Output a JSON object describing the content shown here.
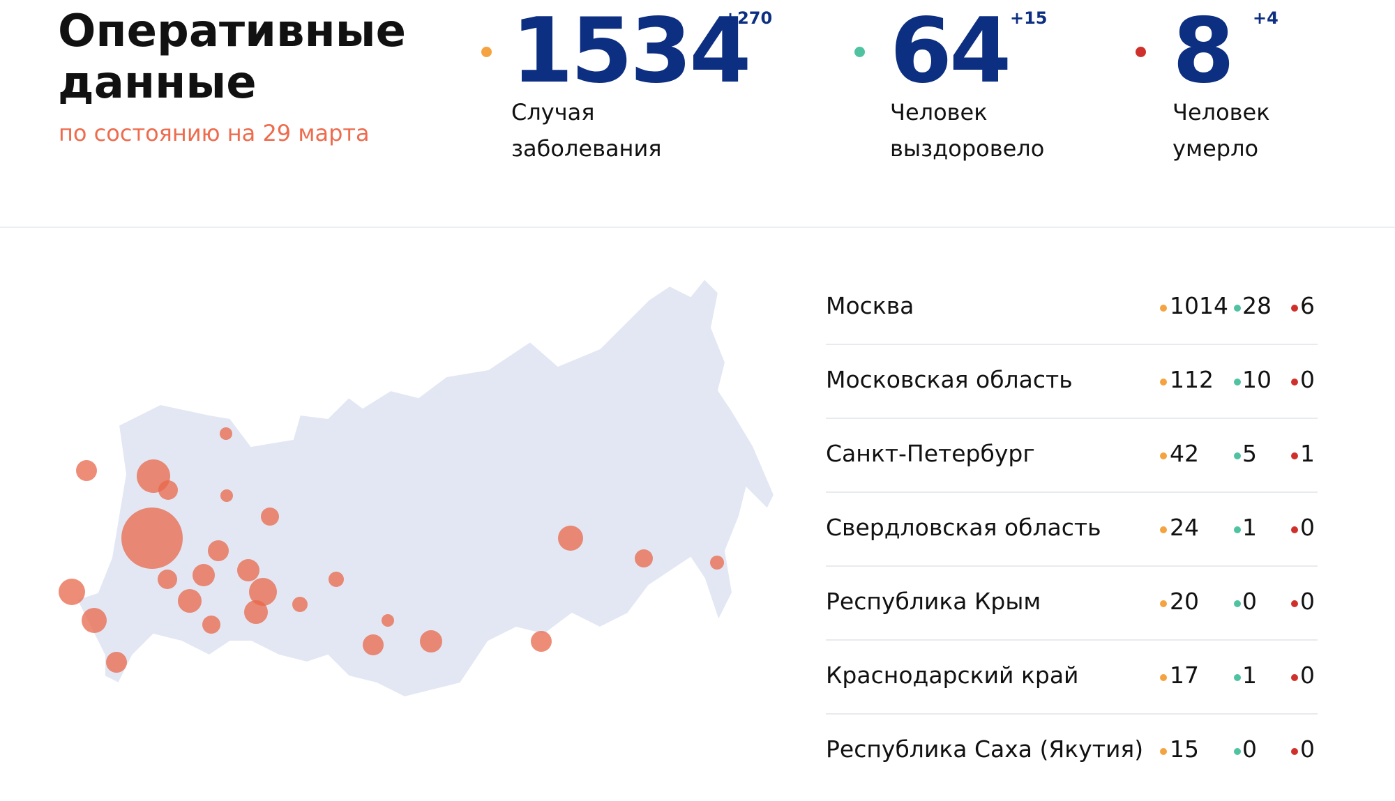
{
  "header": {
    "title": "Оперативные данные",
    "subtitle": "по состоянию на 29 марта"
  },
  "stats": [
    {
      "value": 1534,
      "delta": "+270",
      "label": "Случая заболевания",
      "color": "#f4a340"
    },
    {
      "value": 64,
      "delta": "+15",
      "label": "Человек выздоровело",
      "color": "#4fc3a1"
    },
    {
      "value": 8,
      "delta": "+4",
      "label": "Человек умерло",
      "color": "#d0302b"
    }
  ],
  "table": {
    "rows": [
      [
        "Москва",
        1014,
        28,
        6
      ],
      [
        "Московская область",
        112,
        10,
        0
      ],
      [
        "Санкт-Петербург",
        42,
        5,
        1
      ],
      [
        "Свердловская область",
        24,
        1,
        0
      ],
      [
        "Республика Крым",
        20,
        0,
        0
      ],
      [
        "Краснодарский край",
        17,
        1,
        0
      ],
      [
        "Республика Саха (Якутия)",
        15,
        0,
        0
      ]
    ]
  }
}
